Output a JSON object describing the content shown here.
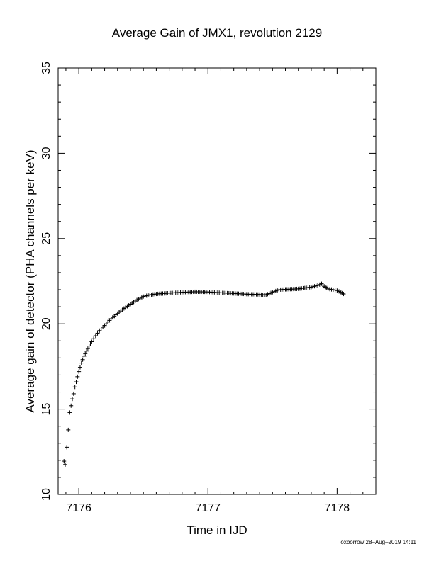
{
  "chart_data": {
    "type": "scatter",
    "title": "Average Gain of JMX1, revolution 2129",
    "xlabel": "Time in IJD",
    "ylabel": "Average gain of detector (PHA channels per keV)",
    "xlim": [
      7175.84,
      7178.3
    ],
    "ylim": [
      10,
      35
    ],
    "xticks": [
      7176,
      7177,
      7178
    ],
    "yticks": [
      10,
      15,
      20,
      25,
      30,
      35
    ],
    "grid": false,
    "marker": "plus",
    "series": [
      {
        "points": [
          [
            7175.885,
            11.95
          ],
          [
            7175.89,
            11.85
          ],
          [
            7175.895,
            11.75
          ],
          [
            7175.93,
            14.8
          ],
          [
            7175.94,
            15.2
          ],
          [
            7175.95,
            15.6
          ],
          [
            7175.96,
            15.9
          ],
          [
            7175.97,
            16.3
          ],
          [
            7175.98,
            16.6
          ],
          [
            7175.99,
            16.9
          ],
          [
            7176.0,
            17.2
          ],
          [
            7176.02,
            17.7
          ],
          [
            7176.04,
            18.1
          ],
          [
            7176.06,
            18.4
          ],
          [
            7176.08,
            18.7
          ],
          [
            7176.1,
            18.95
          ],
          [
            7176.13,
            19.3
          ],
          [
            7176.16,
            19.6
          ],
          [
            7176.2,
            19.9
          ],
          [
            7176.25,
            20.3
          ],
          [
            7176.3,
            20.6
          ],
          [
            7176.35,
            20.9
          ],
          [
            7176.4,
            21.15
          ],
          [
            7176.45,
            21.4
          ],
          [
            7176.5,
            21.6
          ],
          [
            7176.55,
            21.7
          ],
          [
            7176.6,
            21.75
          ],
          [
            7176.7,
            21.8
          ],
          [
            7176.8,
            21.85
          ],
          [
            7176.9,
            21.88
          ],
          [
            7177.0,
            21.87
          ],
          [
            7177.1,
            21.82
          ],
          [
            7177.2,
            21.78
          ],
          [
            7177.25,
            21.76
          ],
          [
            7177.3,
            21.74
          ],
          [
            7177.4,
            21.72
          ],
          [
            7177.45,
            21.7
          ],
          [
            7177.5,
            21.85
          ],
          [
            7177.55,
            22.0
          ],
          [
            7177.6,
            22.02
          ],
          [
            7177.7,
            22.05
          ],
          [
            7177.8,
            22.15
          ],
          [
            7177.85,
            22.25
          ],
          [
            7177.88,
            22.35
          ],
          [
            7177.9,
            22.2
          ],
          [
            7177.93,
            22.05
          ],
          [
            7177.97,
            22.0
          ],
          [
            7178.0,
            21.95
          ],
          [
            7178.03,
            21.85
          ],
          [
            7178.05,
            21.75
          ]
        ]
      }
    ]
  },
  "footer": "oxborrow 28–Aug–2019 14:11"
}
